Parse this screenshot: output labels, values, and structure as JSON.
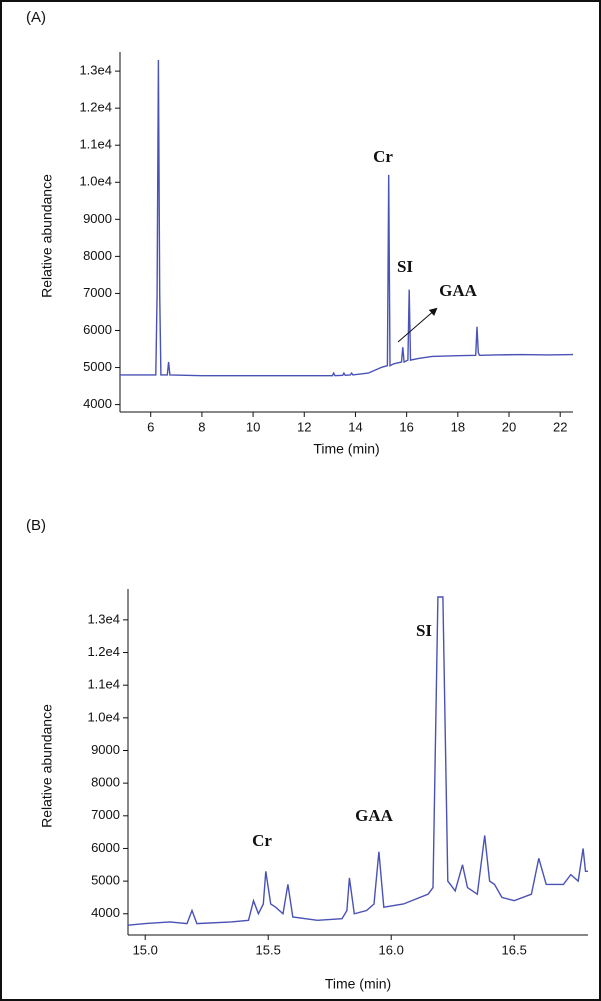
{
  "chart_data": [
    {
      "type": "line",
      "panel_label": "(A)",
      "xlabel": "Time (min)",
      "ylabel": "Relative abundance",
      "xlim": [
        4.8,
        22.5
      ],
      "ylim": [
        3800,
        13300
      ],
      "xticks": [
        6,
        8,
        10,
        12,
        14,
        16,
        18,
        20,
        22
      ],
      "yticks": [
        4000,
        5000,
        6000,
        7000,
        8000,
        9000,
        {
          "value": 10000,
          "label": "1.0e4"
        },
        {
          "value": 11000,
          "label": "1.1e4"
        },
        {
          "value": 12000,
          "label": "1.2e4"
        },
        {
          "value": 13000,
          "label": "1.3e4"
        }
      ],
      "annotations": [
        "Cr",
        "SI",
        "GAA"
      ],
      "color": "#4a52b5",
      "x": [
        4.8,
        6.2,
        6.25,
        6.3,
        6.35,
        6.4,
        6.65,
        6.7,
        6.75,
        8,
        13.1,
        13.15,
        13.2,
        13.5,
        13.55,
        13.6,
        13.8,
        13.85,
        13.9,
        14.5,
        15.0,
        15.25,
        15.3,
        15.35,
        15.5,
        15.8,
        15.85,
        15.9,
        16.05,
        16.1,
        16.15,
        16.5,
        17,
        18,
        18.7,
        18.75,
        18.8,
        18.85,
        19.5,
        20.5,
        21.5,
        22.5
      ],
      "values": [
        4800,
        4800,
        7000,
        13300,
        7000,
        4800,
        4800,
        5150,
        4800,
        4780,
        4780,
        4850,
        4780,
        4790,
        4850,
        4790,
        4800,
        4850,
        4800,
        4850,
        5000,
        5050,
        10200,
        5050,
        5100,
        5150,
        5550,
        5150,
        5200,
        7100,
        5200,
        5250,
        5300,
        5320,
        5330,
        6100,
        5400,
        5330,
        5340,
        5350,
        5340,
        5350
      ]
    },
    {
      "type": "line",
      "panel_label": "(B)",
      "xlabel": "Time (min)",
      "ylabel": "Relative abundance",
      "xlim": [
        14.93,
        16.8
      ],
      "ylim": [
        3350,
        13700
      ],
      "xticks": [
        {
          "value": 15,
          "label": "15.0"
        },
        15.5,
        {
          "value": 16,
          "label": "16.0"
        },
        16.5
      ],
      "yticks": [
        4000,
        5000,
        6000,
        7000,
        8000,
        9000,
        {
          "value": 10000,
          "label": "1.0e4"
        },
        {
          "value": 11000,
          "label": "1.1e4"
        },
        {
          "value": 12000,
          "label": "1.2e4"
        },
        {
          "value": 13000,
          "label": "1.3e4"
        }
      ],
      "annotations": [
        "SI",
        "GAA",
        "Cr"
      ],
      "color": "#4a52b5",
      "x": [
        14.93,
        15.0,
        15.1,
        15.17,
        15.19,
        15.21,
        15.35,
        15.42,
        15.44,
        15.46,
        15.48,
        15.49,
        15.51,
        15.53,
        15.56,
        15.58,
        15.6,
        15.7,
        15.8,
        15.82,
        15.83,
        15.85,
        15.9,
        15.93,
        15.95,
        15.97,
        16.05,
        16.15,
        16.17,
        16.19,
        16.21,
        16.23,
        16.26,
        16.29,
        16.31,
        16.35,
        16.38,
        16.4,
        16.42,
        16.45,
        16.5,
        16.57,
        16.6,
        16.63,
        16.7,
        16.73,
        16.76,
        16.78,
        16.79,
        16.8
      ],
      "values": [
        3650,
        3700,
        3750,
        3700,
        4100,
        3700,
        3750,
        3800,
        4400,
        4000,
        4300,
        5300,
        4300,
        4200,
        4000,
        4900,
        3900,
        3800,
        3850,
        4100,
        5100,
        4000,
        4100,
        4300,
        5900,
        4200,
        4300,
        4600,
        4800,
        13700,
        13700,
        5000,
        4700,
        5500,
        4800,
        4600,
        6400,
        5000,
        4900,
        4500,
        4400,
        4600,
        5700,
        4900,
        4900,
        5200,
        5000,
        6000,
        5300,
        5300
      ]
    }
  ]
}
